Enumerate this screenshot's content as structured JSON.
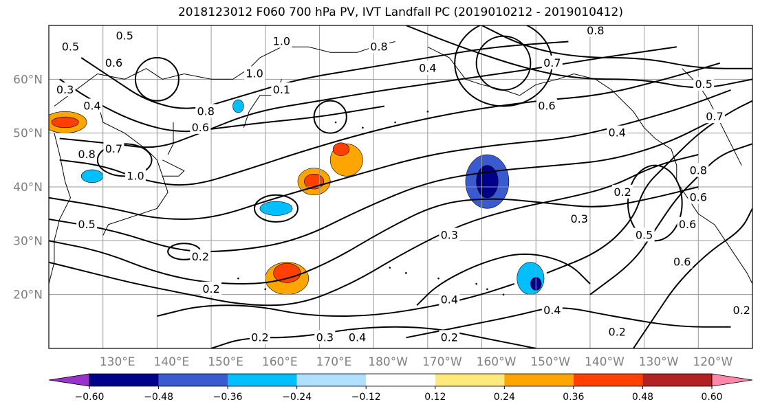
{
  "title": "2018123012 F060 700 hPa PV, IVT Landfall PC (2019010212 - 2019010412)",
  "chart_data": {
    "type": "heatmap",
    "title": "2018123012 F060 700 hPa PV, IVT Landfall PC (2019010212 - 2019010412)",
    "x_ticks": [
      "130°E",
      "140°E",
      "150°E",
      "160°E",
      "170°E",
      "180°W",
      "170°W",
      "160°W",
      "150°W",
      "140°W",
      "130°W",
      "120°W"
    ],
    "x_tick_values": [
      130,
      140,
      150,
      160,
      170,
      180,
      190,
      200,
      210,
      220,
      230,
      240
    ],
    "y_ticks": [
      "20°N",
      "30°N",
      "40°N",
      "50°N",
      "60°N"
    ],
    "y_tick_values": [
      20,
      30,
      40,
      50,
      60
    ],
    "xlim": [
      120,
      250
    ],
    "ylim": [
      10,
      70
    ],
    "grid": true,
    "colorbar": {
      "boundaries": [
        -0.72,
        -0.6,
        -0.48,
        -0.36,
        -0.24,
        -0.12,
        0.12,
        0.24,
        0.36,
        0.48,
        0.6,
        0.72
      ],
      "labels": [
        "−0.60",
        "−0.48",
        "−0.36",
        "−0.24",
        "−0.12",
        "0.12",
        "0.24",
        "0.36",
        "0.48",
        "0.60"
      ],
      "label_values": [
        -0.6,
        -0.48,
        -0.36,
        -0.24,
        -0.12,
        0.12,
        0.24,
        0.36,
        0.48,
        0.6
      ],
      "colors": [
        "#9932cc",
        "#00008b",
        "#3a5bd0",
        "#00bfff",
        "#b0e0ff",
        "#ffffff",
        "#ffe87c",
        "#ffa500",
        "#ff4000",
        "#b22222",
        "#ff88aa"
      ],
      "extend": "both"
    },
    "contour_labels": [
      {
        "text": "0.5",
        "lon": 124,
        "lat": 66
      },
      {
        "text": "0.6",
        "lon": 132,
        "lat": 63
      },
      {
        "text": "0.5",
        "lon": 134,
        "lat": 68
      },
      {
        "text": "0.3",
        "lon": 123,
        "lat": 58
      },
      {
        "text": "0.4",
        "lon": 128,
        "lat": 55
      },
      {
        "text": "0.8",
        "lon": 127,
        "lat": 46
      },
      {
        "text": "0.7",
        "lon": 132,
        "lat": 47
      },
      {
        "text": "1.0",
        "lon": 136,
        "lat": 42
      },
      {
        "text": "0.5",
        "lon": 127,
        "lat": 33
      },
      {
        "text": "1.0",
        "lon": 163,
        "lat": 67
      },
      {
        "text": "1.0",
        "lon": 158,
        "lat": 61
      },
      {
        "text": "0.8",
        "lon": 149,
        "lat": 54
      },
      {
        "text": "0.6",
        "lon": 148,
        "lat": 51
      },
      {
        "text": "0.1",
        "lon": 163,
        "lat": 58
      },
      {
        "text": "0.8",
        "lon": 181,
        "lat": 66
      },
      {
        "text": "0.4",
        "lon": 190,
        "lat": 62
      },
      {
        "text": "0.8",
        "lon": 221,
        "lat": 69
      },
      {
        "text": "0.7",
        "lon": 213,
        "lat": 63
      },
      {
        "text": "0.6",
        "lon": 212,
        "lat": 55
      },
      {
        "text": "0.4",
        "lon": 225,
        "lat": 50
      },
      {
        "text": "0.5",
        "lon": 241,
        "lat": 59
      },
      {
        "text": "0.7",
        "lon": 243,
        "lat": 53
      },
      {
        "text": "0.8",
        "lon": 240,
        "lat": 43
      },
      {
        "text": "0.6",
        "lon": 240,
        "lat": 38
      },
      {
        "text": "0.2",
        "lon": 226,
        "lat": 39
      },
      {
        "text": "0.3",
        "lon": 218,
        "lat": 34
      },
      {
        "text": "0.5",
        "lon": 230,
        "lat": 31
      },
      {
        "text": "0.6",
        "lon": 238,
        "lat": 33
      },
      {
        "text": "0.6",
        "lon": 237,
        "lat": 26
      },
      {
        "text": "0.3",
        "lon": 194,
        "lat": 31
      },
      {
        "text": "0.2",
        "lon": 148,
        "lat": 27
      },
      {
        "text": "0.2",
        "lon": 150,
        "lat": 21
      },
      {
        "text": "0.2",
        "lon": 159,
        "lat": 12
      },
      {
        "text": "0.3",
        "lon": 171,
        "lat": 12
      },
      {
        "text": "0.4",
        "lon": 177,
        "lat": 12
      },
      {
        "text": "0.2",
        "lon": 194,
        "lat": 12
      },
      {
        "text": "0.4",
        "lon": 194,
        "lat": 19
      },
      {
        "text": "0.4",
        "lon": 213,
        "lat": 17
      },
      {
        "text": "0.2",
        "lon": 225,
        "lat": 13
      },
      {
        "text": "0.2",
        "lon": 248,
        "lat": 17
      }
    ],
    "shaded_features": [
      {
        "name": "west-pacific-orange",
        "lon": 123,
        "lat": 52,
        "rx": 4,
        "ry": 2,
        "value": 0.3
      },
      {
        "name": "west-pacific-red",
        "lon": 123,
        "lat": 52,
        "rx": 2.5,
        "ry": 1,
        "value": 0.4
      },
      {
        "name": "japan-blue",
        "lon": 128,
        "lat": 42,
        "rx": 2,
        "ry": 1.2,
        "value": -0.3
      },
      {
        "name": "kuril-blue",
        "lon": 155,
        "lat": 55,
        "rx": 1,
        "ry": 1.2,
        "value": -0.3
      },
      {
        "name": "n-pacific-orange-1",
        "lon": 175,
        "lat": 45,
        "rx": 3,
        "ry": 3,
        "value": 0.3
      },
      {
        "name": "n-pacific-red-1",
        "lon": 174,
        "lat": 47,
        "rx": 1.5,
        "ry": 1.2,
        "value": 0.4
      },
      {
        "name": "n-pacific-orange-2",
        "lon": 169,
        "lat": 41,
        "rx": 3,
        "ry": 2.5,
        "value": 0.3
      },
      {
        "name": "n-pacific-red-2",
        "lon": 169,
        "lat": 41,
        "rx": 1.8,
        "ry": 1.4,
        "value": 0.42
      },
      {
        "name": "mid-pacific-blue",
        "lon": 162,
        "lat": 36,
        "rx": 3,
        "ry": 1.3,
        "value": -0.3
      },
      {
        "name": "gulf-alaska-blue",
        "lon": 201,
        "lat": 41,
        "rx": 4,
        "ry": 5,
        "value": -0.4
      },
      {
        "name": "gulf-alaska-darkblue",
        "lon": 201,
        "lat": 41,
        "rx": 2,
        "ry": 3,
        "value": -0.5
      },
      {
        "name": "subtropical-orange",
        "lon": 164,
        "lat": 23,
        "rx": 4,
        "ry": 3,
        "value": 0.3
      },
      {
        "name": "subtropical-red",
        "lon": 164,
        "lat": 24,
        "rx": 2.5,
        "ry": 1.8,
        "value": 0.42
      },
      {
        "name": "hawaii-blue",
        "lon": 209,
        "lat": 23,
        "rx": 2.5,
        "ry": 3,
        "value": -0.35
      },
      {
        "name": "hawaii-darkblue",
        "lon": 210,
        "lat": 22,
        "rx": 1,
        "ry": 1.2,
        "value": -0.5
      }
    ]
  }
}
